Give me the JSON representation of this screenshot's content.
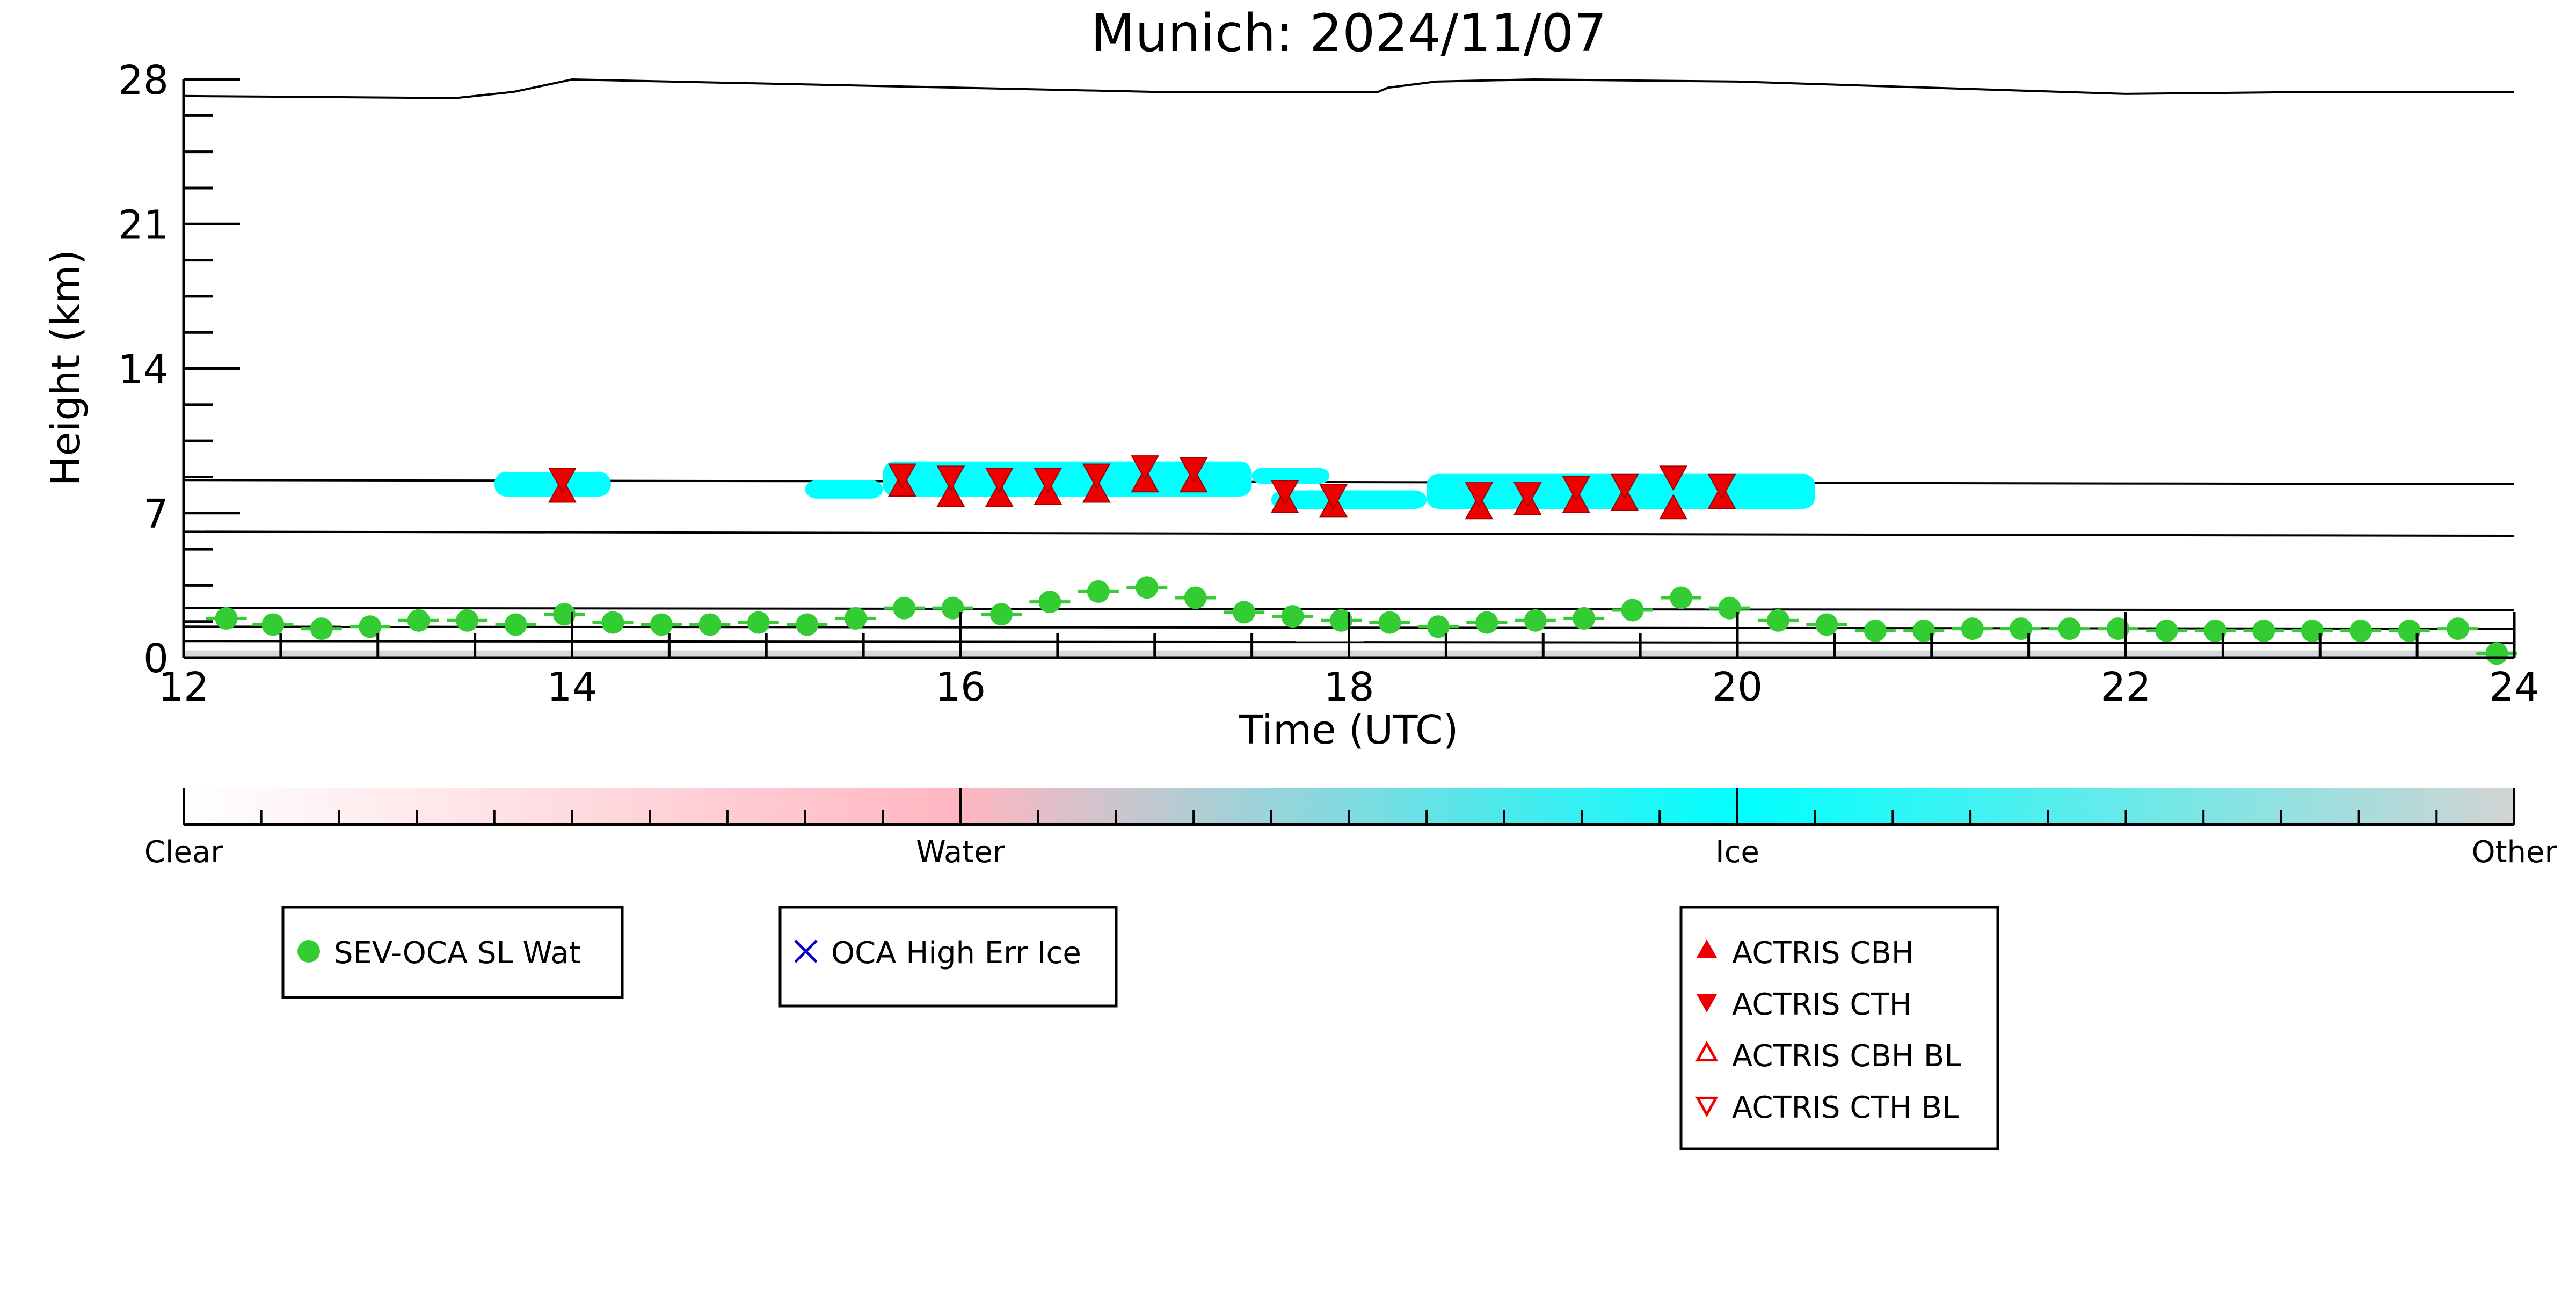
{
  "chart_data": {
    "type": "scatter",
    "title": "Munich: 2024/11/07",
    "xlabel": "Time (UTC)",
    "ylabel": "Height (km)",
    "xlim": [
      12,
      24
    ],
    "ylim": [
      0,
      28
    ],
    "xticks": [
      12,
      14,
      16,
      18,
      20,
      22,
      24
    ],
    "yticks": [
      0,
      7,
      14,
      21,
      28
    ],
    "grid": false,
    "colors": {
      "sev_oca": "#33cc33",
      "actris": "#ee0000",
      "oca_high_err": "#0000cc",
      "ice_cloud": "#00ffff",
      "line": "#000000"
    },
    "colorbar": {
      "labels": [
        "Clear",
        "Water",
        "Ice",
        "Other"
      ],
      "stops": [
        "#ffffff",
        "#ffb6c1",
        "#00ffff",
        "#d3d3d3"
      ]
    },
    "legends": [
      {
        "entries": [
          {
            "label": "SEV-OCA SL Wat",
            "marker": "circle"
          }
        ]
      },
      {
        "entries": [
          {
            "label": "OCA High Err Ice",
            "marker": "x"
          }
        ]
      },
      {
        "entries": [
          {
            "label": "ACTRIS CBH",
            "marker": "triangle-up"
          },
          {
            "label": "ACTRIS CTH",
            "marker": "triangle-down"
          },
          {
            "label": "ACTRIS CBH BL",
            "marker": "triangle-up-open"
          },
          {
            "label": "ACTRIS CTH BL",
            "marker": "triangle-down-open"
          }
        ]
      }
    ],
    "series": [
      {
        "name": "SEV-OCA SL Wat",
        "marker": "circle",
        "x": [
          12.22,
          12.46,
          12.71,
          12.96,
          13.21,
          13.46,
          13.71,
          13.96,
          14.21,
          14.46,
          14.71,
          14.96,
          15.21,
          15.46,
          15.71,
          15.96,
          16.21,
          16.46,
          16.71,
          16.96,
          17.21,
          17.46,
          17.71,
          17.96,
          18.21,
          18.46,
          18.71,
          18.96,
          19.21,
          19.46,
          19.71,
          19.96,
          20.21,
          20.46,
          20.71,
          20.96,
          21.21,
          21.46,
          21.71,
          21.96,
          22.21,
          22.46,
          22.71,
          22.96,
          23.21,
          23.46,
          23.71,
          23.91
        ],
        "y": [
          1.9,
          1.6,
          1.4,
          1.5,
          1.8,
          1.8,
          1.6,
          2.1,
          1.7,
          1.6,
          1.6,
          1.7,
          1.6,
          1.9,
          2.4,
          2.4,
          2.1,
          2.7,
          3.2,
          3.4,
          2.9,
          2.2,
          2.0,
          1.8,
          1.7,
          1.5,
          1.7,
          1.8,
          1.9,
          2.3,
          2.9,
          2.4,
          1.8,
          1.6,
          1.3,
          1.3,
          1.4,
          1.4,
          1.4,
          1.4,
          1.3,
          1.3,
          1.3,
          1.3,
          1.3,
          1.3,
          1.4,
          0.2
        ]
      },
      {
        "name": "ACTRIS CBH",
        "marker": "triangle-up",
        "x": [
          13.95,
          15.7,
          15.95,
          16.2,
          16.45,
          16.7,
          16.95,
          17.2,
          17.67,
          17.92,
          18.67,
          18.92,
          19.17,
          19.42,
          19.67,
          19.92
        ],
        "y": [
          8.0,
          8.3,
          7.8,
          7.8,
          7.9,
          8.0,
          8.5,
          8.5,
          7.5,
          7.3,
          7.2,
          7.4,
          7.5,
          7.6,
          7.2,
          7.7
        ]
      },
      {
        "name": "ACTRIS CTH",
        "marker": "triangle-down",
        "x": [
          13.95,
          15.7,
          15.95,
          16.2,
          16.45,
          16.7,
          16.95,
          17.2,
          17.67,
          17.92,
          18.67,
          18.92,
          19.17,
          19.42,
          19.67,
          19.92
        ],
        "y": [
          8.7,
          8.9,
          8.8,
          8.7,
          8.7,
          8.9,
          9.3,
          9.2,
          8.1,
          7.9,
          8.0,
          8.0,
          8.3,
          8.4,
          8.8,
          8.4
        ]
      },
      {
        "name": "Upper boundary",
        "marker": "line",
        "x": [
          12.0,
          13.4,
          13.7,
          14.0,
          16.0,
          17.0,
          17.5,
          18.15,
          18.2,
          18.45,
          18.95,
          20.0,
          21.0,
          22.0,
          23.0,
          24.0
        ],
        "y": [
          27.2,
          27.1,
          27.4,
          28.0,
          27.6,
          27.4,
          27.4,
          27.4,
          27.6,
          27.9,
          28.0,
          27.9,
          27.6,
          27.3,
          27.4,
          27.4
        ]
      },
      {
        "name": "Upper cloud line",
        "marker": "line",
        "x": [
          12,
          24
        ],
        "y": [
          8.6,
          8.4
        ]
      },
      {
        "name": "Lower cloud line",
        "marker": "line",
        "x": [
          12,
          24
        ],
        "y": [
          6.1,
          5.9
        ]
      },
      {
        "name": "Boundary-layer line 1",
        "marker": "line",
        "x": [
          12,
          24
        ],
        "y": [
          2.4,
          2.3
        ]
      },
      {
        "name": "Boundary-layer line 2",
        "marker": "line",
        "x": [
          12,
          24
        ],
        "y": [
          1.5,
          1.4
        ]
      },
      {
        "name": "Boundary-layer line 3",
        "marker": "line",
        "x": [
          12,
          24
        ],
        "y": [
          0.8,
          0.7
        ]
      }
    ],
    "ice_cloud_patches": [
      {
        "x0": 13.6,
        "x1": 14.2,
        "y0": 7.8,
        "y1": 9.0
      },
      {
        "x0": 15.2,
        "x1": 15.6,
        "y0": 7.7,
        "y1": 8.6
      },
      {
        "x0": 15.6,
        "x1": 17.5,
        "y0": 7.8,
        "y1": 9.5
      },
      {
        "x0": 17.5,
        "x1": 17.9,
        "y0": 8.4,
        "y1": 9.2
      },
      {
        "x0": 17.6,
        "x1": 18.4,
        "y0": 7.2,
        "y1": 8.1
      },
      {
        "x0": 18.4,
        "x1": 20.4,
        "y0": 7.2,
        "y1": 8.9
      }
    ]
  }
}
